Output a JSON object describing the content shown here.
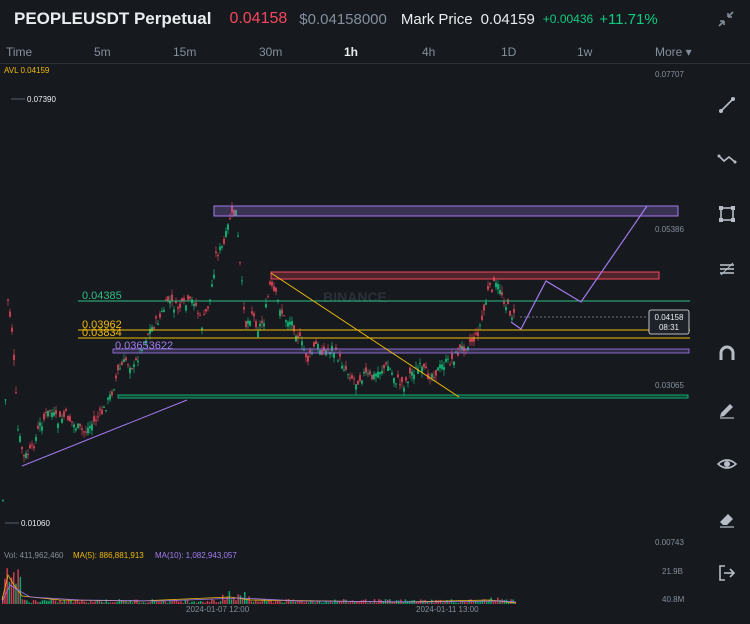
{
  "header": {
    "pair": "PEOPLEUSDT Perpetual",
    "last_price": "0.04158",
    "usd_price": "$0.04158000",
    "mark_label": "Mark Price",
    "mark_price": "0.04159",
    "change": "+0.00436",
    "change_pct": "+11.71%"
  },
  "timeframes": [
    {
      "label": "Time",
      "active": false
    },
    {
      "label": "5m",
      "active": false
    },
    {
      "label": "15m",
      "active": false
    },
    {
      "label": "30m",
      "active": false
    },
    {
      "label": "1h",
      "active": true
    },
    {
      "label": "4h",
      "active": false
    },
    {
      "label": "1D",
      "active": false
    },
    {
      "label": "1w",
      "active": false
    },
    {
      "label": "More ▾",
      "active": false
    }
  ],
  "chart": {
    "avl_label": "AVL 0.04159",
    "high_label": "0.07390",
    "low_label": "0.01060",
    "watermark": "BINANCE",
    "price_axis": [
      "0.07707",
      "0.05386",
      "0.03065",
      "0.00743"
    ],
    "levels": {
      "l1": "0.04385",
      "l2": "0.03962",
      "l3": "0.03834",
      "l4": "0.03653622"
    },
    "current_tag": {
      "price": "0.04158",
      "countdown": "08:31"
    },
    "time_axis": [
      "2024-01-07 12:00",
      "2024-01-11 13:00"
    ]
  },
  "volume": {
    "vol": "Vol: 411,962,460",
    "ma5": "MA(5): 886,881,913",
    "ma10": "MA(10): 1,082,943,057",
    "axis_top": "21.9B",
    "axis_bottom": "40.8M"
  },
  "colors": {
    "bg": "#161a1e",
    "up": "#0ecb81",
    "down": "#f6465d",
    "yellow": "#f0b90b",
    "purple": "#a37bf0"
  },
  "tools": [
    "line-tool-icon",
    "multi-line-tool-icon",
    "rectangle-tool-icon",
    "fib-tool-icon",
    "magnet-icon",
    "pencil-icon",
    "eye-icon",
    "eraser-icon",
    "exit-icon"
  ]
}
